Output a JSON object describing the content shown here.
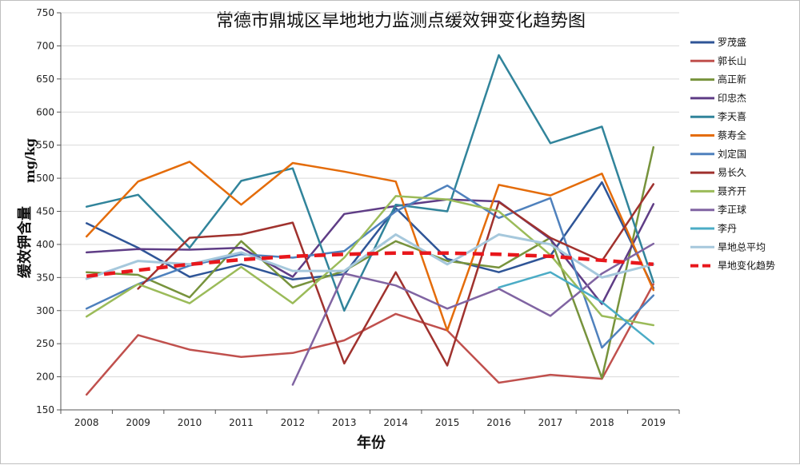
{
  "chart_data": {
    "type": "line",
    "title": "常德市鼎城区旱地地力监测点缓效钾变化趋势图",
    "xlabel": "年份",
    "ylabel": "缓效钾含量",
    "ylabel_unit": "mg/kg",
    "ylim": [
      150,
      750
    ],
    "yticks": [
      "150",
      "200",
      "250",
      "300",
      "350",
      "400",
      "450",
      "500",
      "550",
      "600",
      "650",
      "700",
      "750"
    ],
    "categories": [
      "2008",
      "2009",
      "2010",
      "2011",
      "2012",
      "2013",
      "2014",
      "2015",
      "2016",
      "2017",
      "2018",
      "2019"
    ],
    "legend_position": "right",
    "series": [
      {
        "name": "罗茂盛",
        "color": "#2f5597",
        "width": 2.5,
        "dashed": false,
        "values": [
          432,
          395,
          351,
          370,
          347,
          355,
          455,
          378,
          358,
          383,
          494,
          334
        ]
      },
      {
        "name": "郭长山",
        "color": "#c0504d",
        "width": 2.5,
        "dashed": false,
        "values": [
          173,
          263,
          241,
          230,
          236,
          255,
          295,
          270,
          191,
          203,
          197,
          340
        ]
      },
      {
        "name": "高正新",
        "color": "#77933c",
        "width": 2.5,
        "dashed": false,
        "values": [
          358,
          354,
          320,
          405,
          335,
          360,
          405,
          375,
          365,
          410,
          198,
          547
        ]
      },
      {
        "name": "印忠杰",
        "color": "#5f3d86",
        "width": 2.5,
        "dashed": false,
        "values": [
          388,
          393,
          392,
          395,
          351,
          446,
          458,
          468,
          465,
          408,
          310,
          461
        ]
      },
      {
        "name": "李天喜",
        "color": "#31849b",
        "width": 2.5,
        "dashed": false,
        "values": [
          457,
          475,
          395,
          496,
          515,
          300,
          460,
          450,
          686,
          553,
          578,
          343
        ]
      },
      {
        "name": "蔡寿全",
        "color": "#e46c0a",
        "width": 2.5,
        "dashed": false,
        "values": [
          412,
          495,
          525,
          460,
          523,
          510,
          495,
          270,
          490,
          474,
          507,
          331
        ]
      },
      {
        "name": "刘定国",
        "color": "#4f81bd",
        "width": 2.5,
        "dashed": false,
        "values": [
          303,
          340,
          368,
          385,
          380,
          390,
          450,
          489,
          440,
          470,
          244,
          323
        ]
      },
      {
        "name": "易长久",
        "color": "#a0322e",
        "width": 2.5,
        "dashed": false,
        "values": [
          null,
          333,
          410,
          415,
          433,
          220,
          358,
          217,
          464,
          410,
          375,
          491
        ]
      },
      {
        "name": "聂齐开",
        "color": "#9bbb59",
        "width": 2.5,
        "dashed": false,
        "values": [
          291,
          340,
          311,
          366,
          311,
          380,
          473,
          468,
          450,
          384,
          292,
          278
        ]
      },
      {
        "name": "李正球",
        "color": "#8064a2",
        "width": 2.5,
        "dashed": false,
        "values": [
          null,
          null,
          null,
          null,
          188,
          356,
          338,
          303,
          333,
          292,
          356,
          401
        ]
      },
      {
        "name": "李丹",
        "color": "#4bacc6",
        "width": 2.5,
        "dashed": false,
        "values": [
          null,
          null,
          null,
          null,
          null,
          null,
          null,
          null,
          335,
          358,
          313,
          250
        ]
      },
      {
        "name": "旱地总平均",
        "color": "#a6c8dc",
        "width": 3,
        "dashed": false,
        "values": [
          348,
          375,
          370,
          388,
          360,
          360,
          415,
          370,
          415,
          400,
          350,
          370
        ]
      },
      {
        "name": "旱地变化趋势",
        "color": "#e8171c",
        "width": 4.5,
        "dashed": true,
        "values": [
          352,
          361,
          370,
          377,
          382,
          385,
          387,
          387,
          385,
          382,
          376,
          370
        ]
      }
    ]
  }
}
